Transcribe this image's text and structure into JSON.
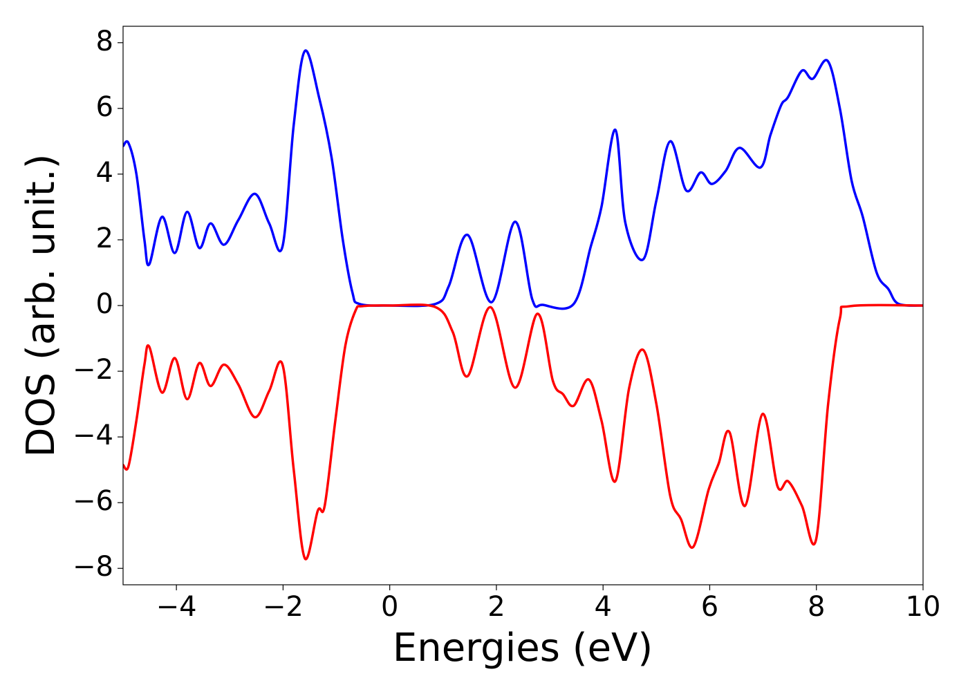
{
  "chart_data": {
    "type": "line",
    "xlabel": "Energies (eV)",
    "ylabel": "DOS (arb. unit.)",
    "xlim": [
      -5,
      10
    ],
    "ylim": [
      -8.5,
      8.5
    ],
    "xticks": [
      {
        "value": -4,
        "label": "−4"
      },
      {
        "value": -2,
        "label": "−2"
      },
      0,
      2,
      4,
      6,
      8,
      10
    ],
    "yticks": [
      {
        "value": -8,
        "label": "−8"
      },
      {
        "value": -6,
        "label": "−6"
      },
      {
        "value": -4,
        "label": "−4"
      },
      {
        "value": -2,
        "label": "−2"
      },
      0,
      2,
      4,
      6,
      8
    ],
    "grid": false,
    "series": [
      {
        "color": "#0000ff",
        "x": [
          -5,
          -4.9,
          -4.75,
          -4.6,
          -4.51,
          -4.27,
          -4.03,
          -3.8,
          -3.57,
          -3.36,
          -3.11,
          -2.84,
          -2.53,
          -2.26,
          -2.01,
          -1.8,
          -1.59,
          -1.32,
          -1.09,
          -0.88,
          -0.7,
          -0.57,
          0,
          0.86,
          1.11,
          1.46,
          1.91,
          2.35,
          2.67,
          2.87,
          3.45,
          3.77,
          3.97,
          4.23,
          4.42,
          4.75,
          5.0,
          5.26,
          5.56,
          5.83,
          6.04,
          6.3,
          6.56,
          6.95,
          7.14,
          7.34,
          7.47,
          7.73,
          7.93,
          8.21,
          8.44,
          8.66,
          8.87,
          9.13,
          9.35,
          9.54,
          10
        ],
        "values": [
          4.85,
          4.95,
          4.0,
          2.0,
          1.25,
          2.7,
          1.6,
          2.85,
          1.75,
          2.5,
          1.85,
          2.6,
          3.4,
          2.5,
          1.8,
          5.5,
          7.75,
          6.3,
          4.5,
          2.0,
          0.4,
          0.05,
          0,
          0.05,
          0.6,
          2.15,
          0.1,
          2.55,
          0.2,
          0.02,
          0.05,
          1.8,
          3.0,
          5.35,
          2.5,
          1.4,
          3.2,
          5.0,
          3.5,
          4.05,
          3.7,
          4.1,
          4.8,
          4.2,
          5.2,
          6.1,
          6.35,
          7.15,
          6.9,
          7.45,
          6.0,
          3.8,
          2.7,
          1.0,
          0.5,
          0.05,
          0
        ]
      },
      {
        "color": "#ff0000",
        "x": [
          -5,
          -4.9,
          -4.75,
          -4.6,
          -4.51,
          -4.27,
          -4.03,
          -3.8,
          -3.57,
          -3.36,
          -3.11,
          -2.84,
          -2.53,
          -2.26,
          -2.01,
          -1.8,
          -1.59,
          -1.35,
          -1.22,
          -1.02,
          -0.83,
          -0.64,
          -0.51,
          0,
          0.86,
          1.18,
          1.46,
          1.89,
          2.35,
          2.77,
          3.06,
          3.25,
          3.45,
          3.73,
          3.97,
          4.23,
          4.49,
          4.75,
          5.0,
          5.26,
          5.46,
          5.69,
          5.98,
          6.17,
          6.37,
          6.66,
          6.99,
          7.27,
          7.47,
          7.73,
          7.99,
          8.22,
          8.44,
          8.63,
          10
        ],
        "values": [
          -4.85,
          -4.9,
          -3.5,
          -1.8,
          -1.25,
          -2.65,
          -1.6,
          -2.85,
          -1.75,
          -2.45,
          -1.8,
          -2.4,
          -3.4,
          -2.6,
          -1.8,
          -5.0,
          -7.7,
          -6.25,
          -6.1,
          -3.5,
          -1.2,
          -0.15,
          -0.02,
          0,
          -0.05,
          -0.8,
          -2.15,
          -0.05,
          -2.5,
          -0.25,
          -2.3,
          -2.7,
          -3.05,
          -2.25,
          -3.5,
          -5.35,
          -2.5,
          -1.35,
          -3.0,
          -5.8,
          -6.5,
          -7.35,
          -5.6,
          -4.8,
          -3.85,
          -6.1,
          -3.3,
          -5.5,
          -5.35,
          -6.1,
          -7.15,
          -3.0,
          -0.4,
          -0.02,
          0
        ]
      }
    ]
  }
}
